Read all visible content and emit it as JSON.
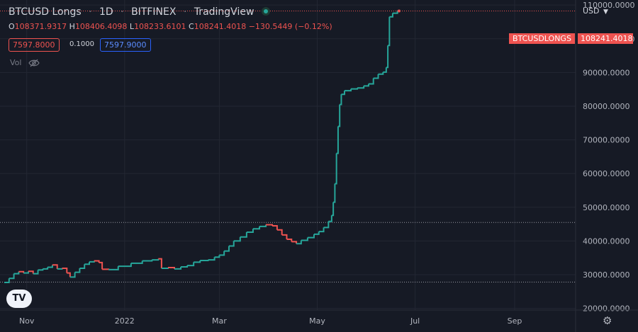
{
  "header": {
    "symbol": "BTCUSD Longs",
    "interval": "1D",
    "exchange": "BITFINEX",
    "source": "TradingView"
  },
  "ohlc": {
    "o_label": "O",
    "o": "108371.9317",
    "h_label": "H",
    "h": "108406.4098",
    "l_label": "L",
    "l": "108233.6101",
    "c_label": "C",
    "c": "108241.4018",
    "change": "−130.5449 (−0.12%)"
  },
  "quote": {
    "bid": "7597.8000",
    "spread": "0.1000",
    "ask": "7597.9000"
  },
  "volume_label": "Vol",
  "currency_menu": "USD",
  "price_tag": {
    "name": "BTCUSDLONGS",
    "price": "108241.4018"
  },
  "colors": {
    "up": "#26a69a",
    "down": "#ef5350",
    "background": "#161a25",
    "grid": "#232733",
    "tag": "#ef5350"
  },
  "icons": {
    "indicator": "live-dot-icon",
    "visibility": "eye-slash-icon",
    "settings": "gear-icon",
    "logo": "tradingview-logo-icon"
  },
  "chart_data": {
    "type": "line",
    "title": "BTCUSD Longs",
    "x_ticks": [
      "Nov",
      "2022",
      "Mar",
      "May",
      "Jul",
      "Sep"
    ],
    "y_ticks": [
      "110000.0000",
      "100000.0000",
      "90000.0000",
      "80000.0000",
      "70000.0000",
      "60000.0000",
      "50000.0000",
      "40000.0000",
      "30000.0000",
      "20000.0000"
    ],
    "ylim": [
      19500,
      111500
    ],
    "reference_lines": [
      45500,
      27800,
      108241.4018
    ],
    "grid": true,
    "series": [
      {
        "values": [
          [
            "2021-10-18",
            27700
          ],
          [
            "2021-10-21",
            28900
          ],
          [
            "2021-10-24",
            30300
          ],
          [
            "2021-10-27",
            30900
          ],
          [
            "2021-10-30",
            30500
          ],
          [
            "2021-11-02",
            31000
          ],
          [
            "2021-11-05",
            30300
          ],
          [
            "2021-11-08",
            31400
          ],
          [
            "2021-11-11",
            31700
          ],
          [
            "2021-11-14",
            32200
          ],
          [
            "2021-11-17",
            32900
          ],
          [
            "2021-11-20",
            31700
          ],
          [
            "2021-11-23",
            31900
          ],
          [
            "2021-11-26",
            30500
          ],
          [
            "2021-11-28",
            29300
          ],
          [
            "2021-12-01",
            30700
          ],
          [
            "2021-12-04",
            31900
          ],
          [
            "2021-12-07",
            33100
          ],
          [
            "2021-12-10",
            33800
          ],
          [
            "2021-12-13",
            34100
          ],
          [
            "2021-12-16",
            33600
          ],
          [
            "2021-12-18",
            31600
          ],
          [
            "2021-12-22",
            31500
          ],
          [
            "2021-12-28",
            32500
          ],
          [
            "2022-01-05",
            33400
          ],
          [
            "2022-01-12",
            34100
          ],
          [
            "2022-01-18",
            34400
          ],
          [
            "2022-01-22",
            34700
          ],
          [
            "2022-01-24",
            31900
          ],
          [
            "2022-01-28",
            32100
          ],
          [
            "2022-02-01",
            31700
          ],
          [
            "2022-02-05",
            32300
          ],
          [
            "2022-02-09",
            32700
          ],
          [
            "2022-02-13",
            33700
          ],
          [
            "2022-02-17",
            34200
          ],
          [
            "2022-02-22",
            34400
          ],
          [
            "2022-02-26",
            35200
          ],
          [
            "2022-03-01",
            35800
          ],
          [
            "2022-03-04",
            37000
          ],
          [
            "2022-03-07",
            38500
          ],
          [
            "2022-03-10",
            40000
          ],
          [
            "2022-03-14",
            41200
          ],
          [
            "2022-03-18",
            42600
          ],
          [
            "2022-03-22",
            43600
          ],
          [
            "2022-03-26",
            44300
          ],
          [
            "2022-03-30",
            44800
          ],
          [
            "2022-04-03",
            44500
          ],
          [
            "2022-04-06",
            43300
          ],
          [
            "2022-04-09",
            41800
          ],
          [
            "2022-04-12",
            40500
          ],
          [
            "2022-04-15",
            39800
          ],
          [
            "2022-04-18",
            39200
          ],
          [
            "2022-04-21",
            40200
          ],
          [
            "2022-04-25",
            41000
          ],
          [
            "2022-04-29",
            42000
          ],
          [
            "2022-05-02",
            42800
          ],
          [
            "2022-05-05",
            44000
          ],
          [
            "2022-05-08",
            45800
          ],
          [
            "2022-05-10",
            47600
          ],
          [
            "2022-05-11",
            51500
          ],
          [
            "2022-05-12",
            57000
          ],
          [
            "2022-05-13",
            66000
          ],
          [
            "2022-05-14",
            74000
          ],
          [
            "2022-05-15",
            80500
          ],
          [
            "2022-05-16",
            83500
          ],
          [
            "2022-05-18",
            84600
          ],
          [
            "2022-05-22",
            85100
          ],
          [
            "2022-05-26",
            85400
          ],
          [
            "2022-05-30",
            86000
          ],
          [
            "2022-06-02",
            86600
          ],
          [
            "2022-06-05",
            88300
          ],
          [
            "2022-06-08",
            89500
          ],
          [
            "2022-06-11",
            90100
          ],
          [
            "2022-06-13",
            91500
          ],
          [
            "2022-06-14",
            98000
          ],
          [
            "2022-06-15",
            106500
          ],
          [
            "2022-06-17",
            107600
          ],
          [
            "2022-06-20",
            108300
          ],
          [
            "2022-06-21",
            108241.4018
          ]
        ]
      }
    ]
  }
}
